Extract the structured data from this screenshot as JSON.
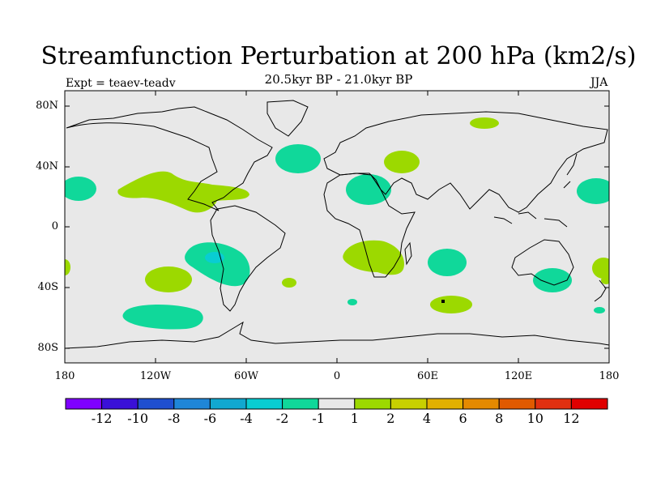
{
  "title": "Streamfunction Perturbation at 200 hPa (km2/s)",
  "subtitle": "20.5kyr BP - 21.0kyr BP",
  "left_label": "Expt = teaev-teadv",
  "right_label": "JJA",
  "lat_labels": [
    "80N",
    "40N",
    "0",
    "40S",
    "80S"
  ],
  "lon_labels": [
    "180",
    "120W",
    "60W",
    "0",
    "60E",
    "120E",
    "180"
  ],
  "colorbar": {
    "labels": [
      "-12",
      "-10",
      "-8",
      "-6",
      "-4",
      "-2",
      "-1",
      "1",
      "2",
      "4",
      "6",
      "8",
      "10",
      "12"
    ],
    "colors": [
      "#7f00ff",
      "#3a10d8",
      "#1f4fcf",
      "#1f86d8",
      "#11a8d0",
      "#09cdd2",
      "#10d89a",
      "#e8e8e8",
      "#9cd900",
      "#c8d000",
      "#e2b000",
      "#e48a00",
      "#e05a00",
      "#e03010",
      "#e00000"
    ]
  },
  "colors": {
    "background": "#e8e8e8",
    "negative_fill": "#10d89a",
    "negative_strong": "#09cdd2",
    "positive_fill": "#9cd900",
    "coastline": "#000000"
  }
}
